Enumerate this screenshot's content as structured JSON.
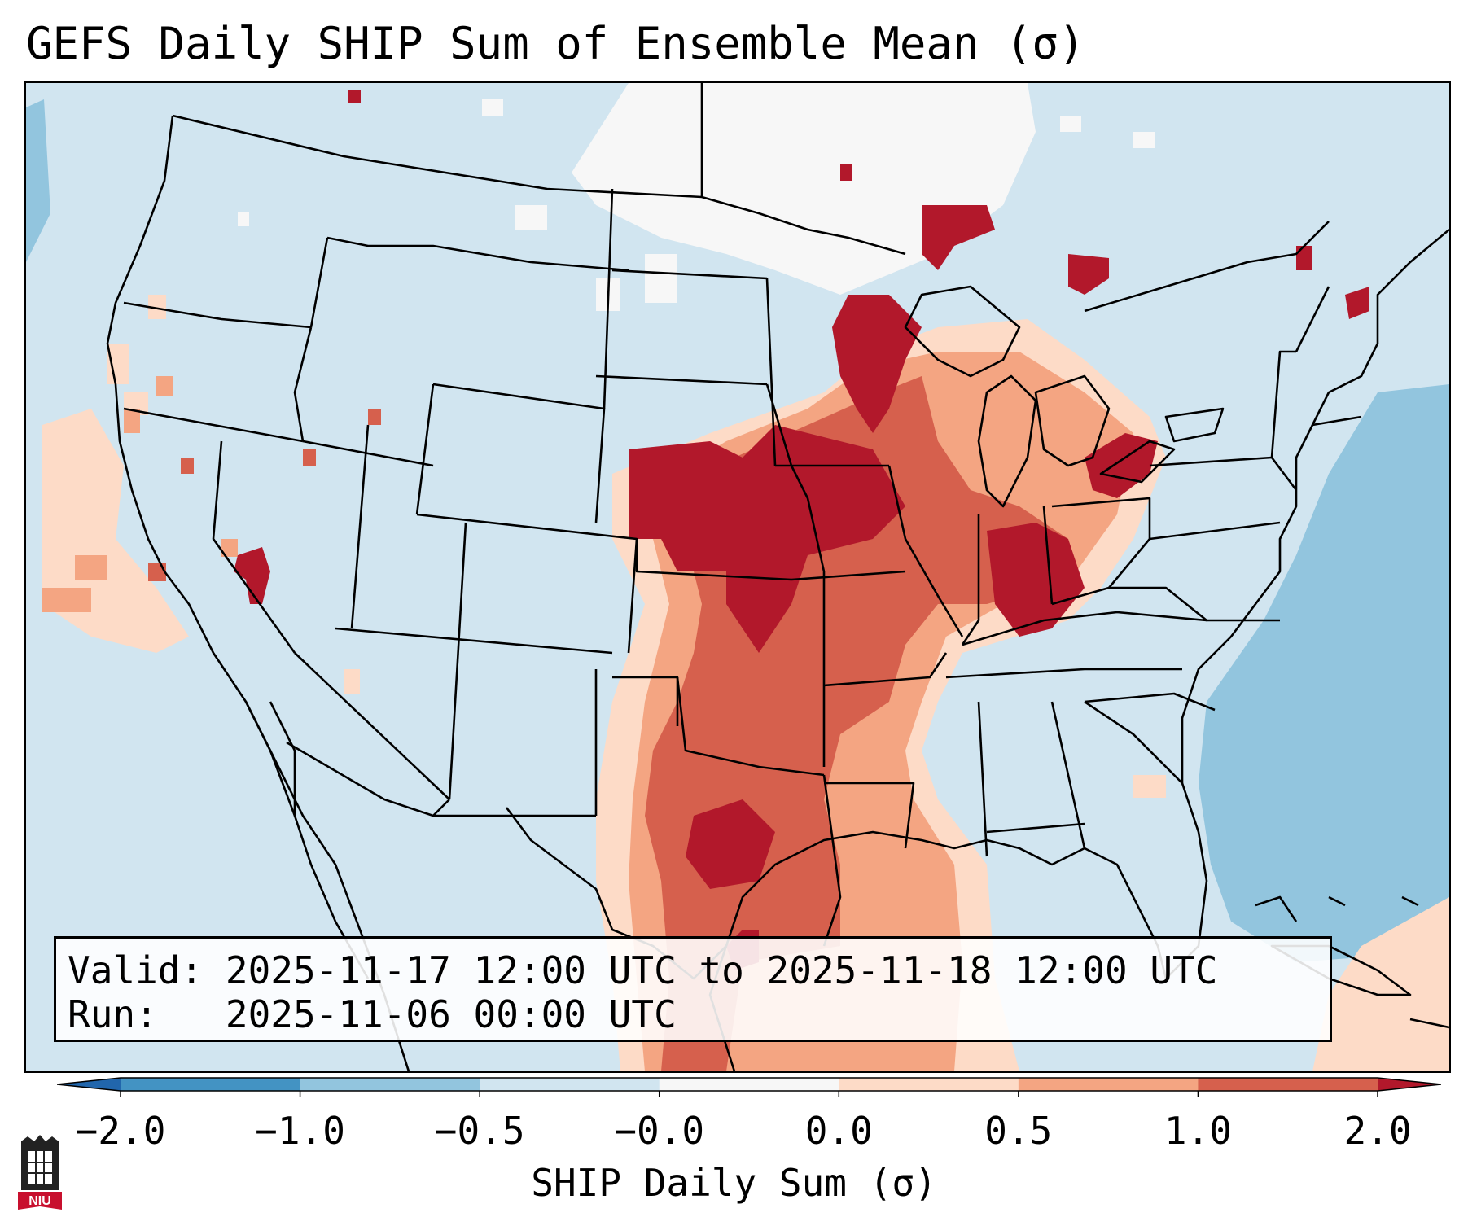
{
  "title": "GEFS Daily SHIP Sum of Ensemble Mean (σ)",
  "info": {
    "valid_label": "Valid:",
    "valid_value": "2025-11-17 12:00 UTC to 2025-11-18 12:00 UTC",
    "run_label": "Run:",
    "run_value": "2025-11-06 00:00 UTC"
  },
  "colorbar": {
    "label": "SHIP Daily Sum (σ)",
    "ticks": [
      "−2.0",
      "−1.0",
      "−0.5",
      "−0.0",
      "0.0",
      "0.5",
      "1.0",
      "2.0"
    ],
    "bins": [
      {
        "range": "< −2.0",
        "color": "#2166ac"
      },
      {
        "range": "−2.0 to −1.0",
        "color": "#4393c3"
      },
      {
        "range": "−1.0 to −0.5",
        "color": "#92c5de"
      },
      {
        "range": "−0.5 to −0.0",
        "color": "#d1e5f0"
      },
      {
        "range": "−0.0 to 0.0",
        "color": "#f7f7f7"
      },
      {
        "range": "0.0 to 0.5",
        "color": "#fddbc7"
      },
      {
        "range": "0.5 to 1.0",
        "color": "#f4a582"
      },
      {
        "range": "1.0 to 2.0",
        "color": "#d6604d"
      },
      {
        "range": "> 2.0",
        "color": "#b2182b"
      }
    ]
  },
  "map": {
    "projection": "Lambert conformal, CONUS",
    "background_value_color": "#d1e5f0",
    "ocean_east_color": "#92c5de"
  },
  "logo": {
    "text": "NIU"
  }
}
